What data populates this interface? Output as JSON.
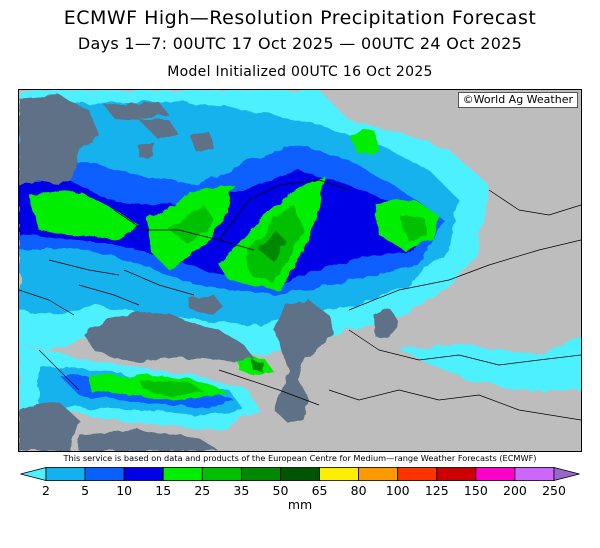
{
  "header": {
    "title": "ECMWF High—Resolution Precipitation Forecast",
    "subtitle": "Days 1—7: 00UTC 17 Oct 2025 — 00UTC 24 Oct 2025",
    "init": "Model Initialized 00UTC 16 Oct 2025"
  },
  "map": {
    "credit": "©World Ag Weather",
    "region": "Eastern Europe, Black Sea, Caspian Sea, Western Russia, Kazakhstan"
  },
  "footer_note": "This service is based on data and products of the European Centre for Medium—range Weather Forecasts (ECMWF)",
  "legend": {
    "units": "mm",
    "tick_labels": [
      "2",
      "5",
      "10",
      "15",
      "25",
      "35",
      "50",
      "65",
      "80",
      "100",
      "125",
      "150",
      "200",
      "250"
    ],
    "colors": [
      "#4df0ff",
      "#13b2ee",
      "#0a5fff",
      "#0000e8",
      "#00ee00",
      "#00c000",
      "#008800",
      "#005500",
      "#ffee00",
      "#ff9900",
      "#ff3300",
      "#cc0000",
      "#ff00cc",
      "#cc66ff",
      "#9966cc"
    ],
    "background_colors": {
      "land": "#bdbdbd",
      "water": "#5f7186"
    }
  }
}
